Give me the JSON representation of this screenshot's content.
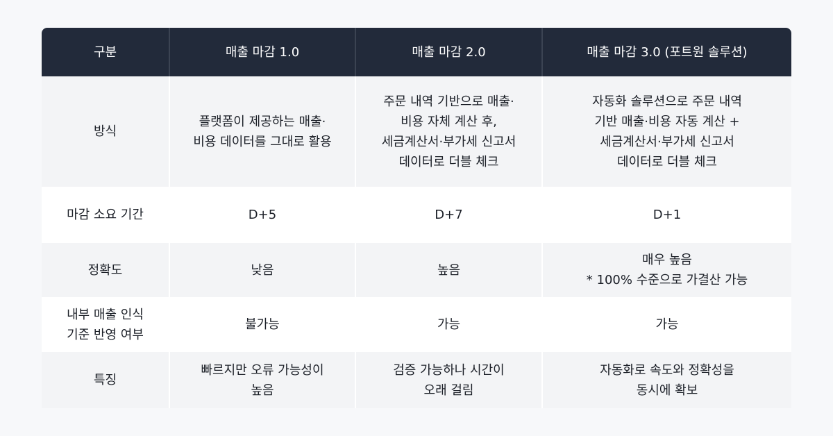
{
  "headers": [
    "구분",
    "매출 마감 1.0",
    "매출 마감 2.0",
    "매출 마감 3.0 (포트원 솔루션)"
  ],
  "rows": [
    {
      "label": "방식",
      "cells": [
        "플랫폼이 제공하는 매출·\n비용 데이터를 그대로 활용",
        "주문 내역 기반으로 매출·\n비용 자체 계산 후,\n세금계산서·부가세 신고서\n데이터로 더블 체크",
        "자동화 솔루션으로 주문 내역\n기반 매출·비용 자동 계산 +\n세금계산서·부가세 신고서\n데이터로 더블 체크"
      ]
    },
    {
      "label": "마감 소요 기간",
      "cells": [
        "D+5",
        "D+7",
        "D+1"
      ]
    },
    {
      "label": "정확도",
      "cells": [
        "낮음",
        "높음",
        "매우 높음\n* 100% 수준으로 가결산 가능"
      ]
    },
    {
      "label": "내부 매출 인식\n기준 반영 여부",
      "cells": [
        "불가능",
        "가능",
        "가능"
      ]
    },
    {
      "label": "특징",
      "cells": [
        "빠르지만 오류 가능성이\n높음",
        "검증 가능하나 시간이\n오래 걸림",
        "자동화로 속도와 정확성을\n동시에 확보"
      ]
    }
  ],
  "colors": {
    "header_bg": "#222a3a",
    "stripe": "#f3f4f6",
    "page_bg": "#f7f8fa"
  }
}
